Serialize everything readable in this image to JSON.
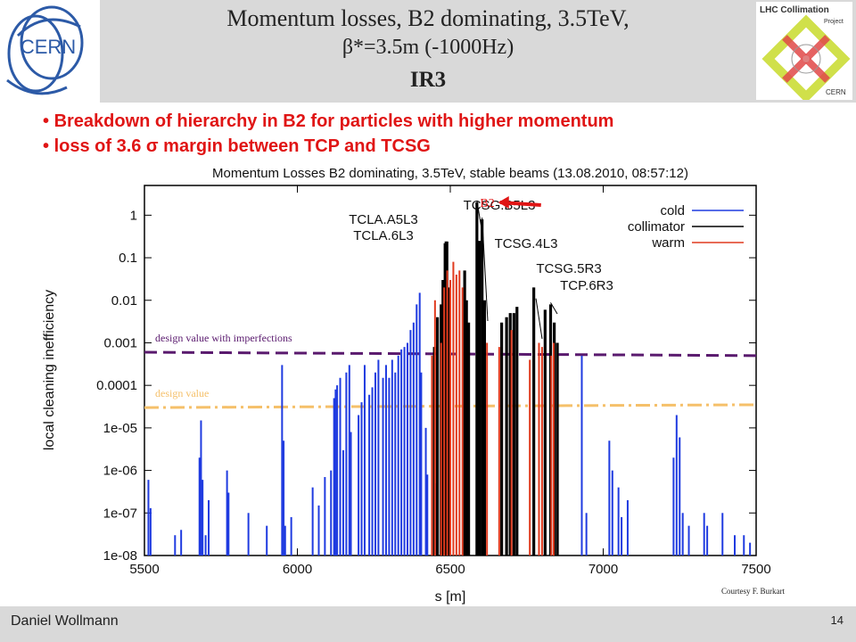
{
  "header": {
    "title_line1": "Momentum losses, B2 dominating, 3.5TeV,",
    "title_line2": "β*=3.5m (-1000Hz)",
    "title_line3": "IR3",
    "cern_logo_text": "CERN",
    "lhc_logo_text": "LHC Collimation",
    "lhc_logo_sub1": "Project",
    "lhc_logo_sub2": "CERN"
  },
  "bullets": [
    "Breakdown of hierarchy in B2 for particles with higher momentum",
    "loss of 3.6 σ margin between TCP and TCSG"
  ],
  "chart_data": {
    "type": "bar",
    "title": "Momentum Losses B2 dominating, 3.5TeV, stable beams (13.08.2010, 08:57:12)",
    "xlabel": "s [m]",
    "ylabel": "local cleaning inefficiency",
    "xlim": [
      5500,
      7500
    ],
    "ylim": [
      1e-08,
      5
    ],
    "yscale": "log",
    "xticks": [
      "5500",
      "6000",
      "6500",
      "7000",
      "7500"
    ],
    "yticks": [
      "1e-08",
      "1e-07",
      "1e-06",
      "1e-05",
      "0.0001",
      "0.001",
      "0.01",
      "0.1",
      "1"
    ],
    "legend": {
      "placement": "top-right",
      "entries": [
        {
          "label": "cold",
          "color": "#1f3be0"
        },
        {
          "label": "collimator",
          "color": "#000000"
        },
        {
          "label": "warm",
          "color": "#e03a1e"
        }
      ]
    },
    "reference_lines": [
      {
        "label": "design value with imperfections",
        "value_start": 0.0006,
        "value_end": 0.0005,
        "color": "#5a1a6e",
        "style": "dashed"
      },
      {
        "label": "design value",
        "value_start": 3e-05,
        "value_end": 3.5e-05,
        "color": "#f5c06a",
        "style": "dashdot"
      }
    ],
    "annotations": [
      {
        "text": "TCSG.B5L3",
        "s": 6587,
        "value": 2
      },
      {
        "text": "TCLA.A5L3",
        "s": 6483,
        "value": 0.22
      },
      {
        "text": "TCLA.6L3",
        "s": 6488,
        "value": 0.22
      },
      {
        "text": "TCSG.4L3",
        "s": 6604,
        "value": 0.8
      },
      {
        "text": "TCSG.5R3",
        "s": 6780,
        "value": 0.01
      },
      {
        "text": "TCP.6R3",
        "s": 6828,
        "value": 0.008
      },
      {
        "text": "B2",
        "s": 6680,
        "value": 2.0
      }
    ],
    "series": [
      {
        "name": "cold",
        "color": "#1f3be0",
        "points": [
          [
            5513,
            6e-07
          ],
          [
            5520,
            1.3e-07
          ],
          [
            5600,
            3e-08
          ],
          [
            5620,
            4e-08
          ],
          [
            5680,
            2e-06
          ],
          [
            5685,
            1.5e-05
          ],
          [
            5690,
            6e-07
          ],
          [
            5700,
            3e-08
          ],
          [
            5710,
            2e-07
          ],
          [
            5770,
            1e-06
          ],
          [
            5775,
            3e-07
          ],
          [
            5840,
            1e-07
          ],
          [
            5900,
            5e-08
          ],
          [
            5950,
            0.0003
          ],
          [
            5955,
            5e-06
          ],
          [
            5960,
            5e-08
          ],
          [
            5980,
            8e-08
          ],
          [
            6050,
            4e-07
          ],
          [
            6070,
            1.5e-07
          ],
          [
            6090,
            7e-07
          ],
          [
            6110,
            1e-06
          ],
          [
            6120,
            5e-05
          ],
          [
            6125,
            8e-05
          ],
          [
            6130,
            0.0001
          ],
          [
            6140,
            0.00015
          ],
          [
            6150,
            3e-06
          ],
          [
            6160,
            0.0002
          ],
          [
            6170,
            0.0003
          ],
          [
            6175,
            8e-06
          ],
          [
            6200,
            2e-05
          ],
          [
            6210,
            4e-05
          ],
          [
            6220,
            0.0003
          ],
          [
            6235,
            6e-05
          ],
          [
            6245,
            9e-05
          ],
          [
            6255,
            0.0002
          ],
          [
            6265,
            0.0004
          ],
          [
            6280,
            0.00015
          ],
          [
            6290,
            0.0003
          ],
          [
            6300,
            0.00015
          ],
          [
            6310,
            0.0004
          ],
          [
            6320,
            0.0002
          ],
          [
            6330,
            0.0005
          ],
          [
            6340,
            0.0007
          ],
          [
            6350,
            0.0008
          ],
          [
            6360,
            0.001
          ],
          [
            6370,
            0.002
          ],
          [
            6380,
            0.003
          ],
          [
            6390,
            0.008
          ],
          [
            6400,
            0.015
          ],
          [
            6405,
            0.0002
          ],
          [
            6420,
            1e-05
          ],
          [
            6425,
            8e-07
          ],
          [
            6450,
            5e-07
          ],
          [
            6930,
            0.0005
          ],
          [
            6945,
            1e-07
          ],
          [
            7020,
            5e-06
          ],
          [
            7030,
            1e-06
          ],
          [
            7050,
            4e-07
          ],
          [
            7060,
            8e-08
          ],
          [
            7080,
            2e-07
          ],
          [
            7230,
            2e-06
          ],
          [
            7240,
            2e-05
          ],
          [
            7250,
            6e-06
          ],
          [
            7260,
            1e-07
          ],
          [
            7280,
            5e-08
          ],
          [
            7330,
            1e-07
          ],
          [
            7340,
            5e-08
          ],
          [
            7390,
            1e-07
          ],
          [
            7430,
            3e-08
          ],
          [
            7460,
            3e-08
          ],
          [
            7480,
            2e-08
          ]
        ]
      },
      {
        "name": "collimator",
        "color": "#000000",
        "points": [
          [
            6448,
            0.0008
          ],
          [
            6458,
            0.004
          ],
          [
            6470,
            0.008
          ],
          [
            6476,
            0.03
          ],
          [
            6483,
            0.22
          ],
          [
            6489,
            0.24
          ],
          [
            6495,
            0.02
          ],
          [
            6547,
            0.05
          ],
          [
            6553,
            0.01
          ],
          [
            6560,
            0.003
          ],
          [
            6587,
            2.0
          ],
          [
            6595,
            0.25
          ],
          [
            6604,
            0.8
          ],
          [
            6612,
            0.01
          ],
          [
            6668,
            0.003
          ],
          [
            6684,
            0.004
          ],
          [
            6696,
            0.005
          ],
          [
            6708,
            0.005
          ],
          [
            6718,
            0.007
          ],
          [
            6773,
            0.02
          ],
          [
            6810,
            0.006
          ],
          [
            6828,
            0.008
          ],
          [
            6840,
            0.003
          ],
          [
            6850,
            0.001
          ]
        ]
      },
      {
        "name": "warm",
        "color": "#e03a1e",
        "points": [
          [
            6440,
            0.0005
          ],
          [
            6450,
            0.01
          ],
          [
            6470,
            0.001
          ],
          [
            6480,
            0.02
          ],
          [
            6490,
            0.05
          ],
          [
            6500,
            0.03
          ],
          [
            6510,
            0.08
          ],
          [
            6520,
            0.04
          ],
          [
            6530,
            0.05
          ],
          [
            6540,
            0.02
          ],
          [
            6620,
            0.001
          ],
          [
            6660,
            0.0008
          ],
          [
            6700,
            0.002
          ],
          [
            6760,
            0.0004
          ],
          [
            6790,
            0.001
          ],
          [
            6800,
            0.0008
          ],
          [
            6830,
            0.0005
          ],
          [
            6838,
            0.001
          ]
        ]
      }
    ]
  },
  "credit": "Courtesy F. Burkart",
  "footer": {
    "author": "Daniel Wollmann",
    "page": "14"
  }
}
